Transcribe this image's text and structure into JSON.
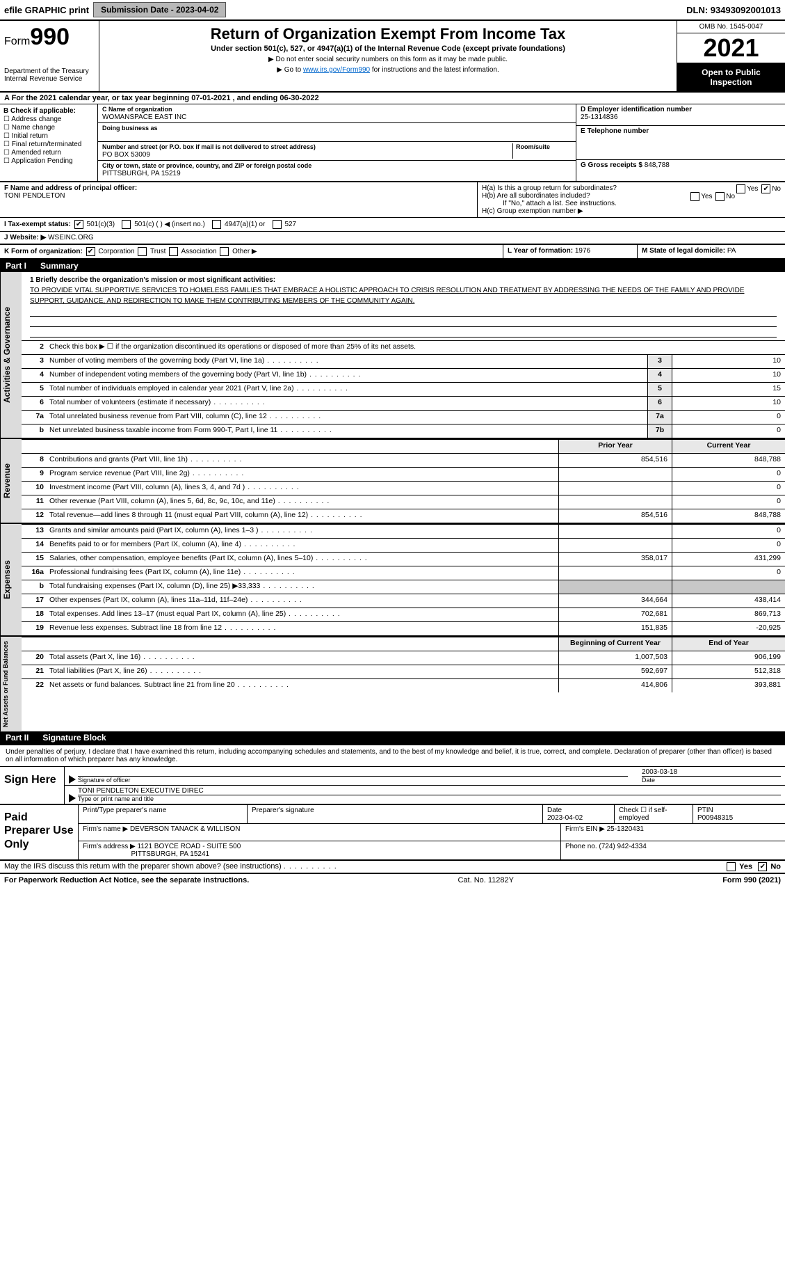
{
  "topbar": {
    "efile": "efile GRAPHIC print",
    "submission_label": "Submission Date - 2023-04-02",
    "dln": "DLN: 93493092001013"
  },
  "header": {
    "form_prefix": "Form",
    "form_no": "990",
    "dept1": "Department of the Treasury",
    "dept2": "Internal Revenue Service",
    "title": "Return of Organization Exempt From Income Tax",
    "subtitle": "Under section 501(c), 527, or 4947(a)(1) of the Internal Revenue Code (except private foundations)",
    "note1": "▶ Do not enter social security numbers on this form as it may be made public.",
    "note2_pre": "▶ Go to ",
    "note2_link": "www.irs.gov/Form990",
    "note2_post": " for instructions and the latest information.",
    "omb": "OMB No. 1545-0047",
    "year": "2021",
    "open": "Open to Public Inspection"
  },
  "rowA": "A For the 2021 calendar year, or tax year beginning 07-01-2021    , and ending 06-30-2022",
  "blockB": {
    "title": "B Check if applicable:",
    "items": [
      "Address change",
      "Name change",
      "Initial return",
      "Final return/terminated",
      "Amended return",
      "Application Pending"
    ]
  },
  "blockC": {
    "name_lbl": "C Name of organization",
    "name": "WOMANSPACE EAST INC",
    "dba_lbl": "Doing business as",
    "dba": "",
    "addr_lbl": "Number and street (or P.O. box if mail is not delivered to street address)",
    "room_lbl": "Room/suite",
    "addr": "PO BOX 53009",
    "city_lbl": "City or town, state or province, country, and ZIP or foreign postal code",
    "city": "PITTSBURGH, PA  15219"
  },
  "blockD": {
    "ein_lbl": "D Employer identification number",
    "ein": "25-1314836",
    "tel_lbl": "E Telephone number",
    "tel": "",
    "gross_lbl": "G Gross receipts $",
    "gross": "848,788"
  },
  "rowF": {
    "lbl": "F Name and address of principal officer:",
    "val": "TONI PENDLETON"
  },
  "rowH": {
    "a": "H(a)  Is this a group return for subordinates?",
    "b": "H(b)  Are all subordinates included?",
    "b_note": "If \"No,\" attach a list. See instructions.",
    "c": "H(c)  Group exemption number ▶",
    "yes": "Yes",
    "no": "No"
  },
  "rowI": {
    "lbl": "I    Tax-exempt status:",
    "o1": "501(c)(3)",
    "o2": "501(c) (  ) ◀ (insert no.)",
    "o3": "4947(a)(1) or",
    "o4": "527"
  },
  "rowJ": {
    "lbl": "J   Website: ▶",
    "val": "WSEINC.ORG"
  },
  "rowK": {
    "lbl": "K Form of organization:",
    "o1": "Corporation",
    "o2": "Trust",
    "o3": "Association",
    "o4": "Other ▶",
    "l_lbl": "L Year of formation:",
    "l_val": "1976",
    "m_lbl": "M State of legal domicile:",
    "m_val": "PA"
  },
  "part1": {
    "num": "Part I",
    "title": "Summary"
  },
  "mission": {
    "lbl": "1  Briefly describe the organization's mission or most significant activities:",
    "text": "TO PROVIDE VITAL SUPPORTIVE SERVICES TO HOMELESS FAMILIES THAT EMBRACE A HOLISTIC APPROACH TO CRISIS RESOLUTION AND TREATMENT BY ADDRESSING THE NEEDS OF THE FAMILY AND PROVIDE SUPPORT, GUIDANCE, AND REDIRECTION TO MAKE THEM CONTRIBUTING MEMBERS OF THE COMMUNITY AGAIN."
  },
  "sec_ag": {
    "vtab": "Activities & Governance",
    "l2": "Check this box ▶ ☐  if the organization discontinued its operations or disposed of more than 25% of its net assets.",
    "lines": [
      {
        "n": "3",
        "t": "Number of voting members of the governing body (Part VI, line 1a)",
        "bx": "3",
        "v": "10"
      },
      {
        "n": "4",
        "t": "Number of independent voting members of the governing body (Part VI, line 1b)",
        "bx": "4",
        "v": "10"
      },
      {
        "n": "5",
        "t": "Total number of individuals employed in calendar year 2021 (Part V, line 2a)",
        "bx": "5",
        "v": "15"
      },
      {
        "n": "6",
        "t": "Total number of volunteers (estimate if necessary)",
        "bx": "6",
        "v": "10"
      },
      {
        "n": "7a",
        "t": "Total unrelated business revenue from Part VIII, column (C), line 12",
        "bx": "7a",
        "v": "0"
      },
      {
        "n": "b",
        "t": "Net unrelated business taxable income from Form 990-T, Part I, line 11",
        "bx": "7b",
        "v": "0"
      }
    ]
  },
  "cols": {
    "prior": "Prior Year",
    "current": "Current Year"
  },
  "sec_rev": {
    "vtab": "Revenue",
    "lines": [
      {
        "n": "8",
        "t": "Contributions and grants (Part VIII, line 1h)",
        "p": "854,516",
        "c": "848,788"
      },
      {
        "n": "9",
        "t": "Program service revenue (Part VIII, line 2g)",
        "p": "",
        "c": "0"
      },
      {
        "n": "10",
        "t": "Investment income (Part VIII, column (A), lines 3, 4, and 7d )",
        "p": "",
        "c": "0"
      },
      {
        "n": "11",
        "t": "Other revenue (Part VIII, column (A), lines 5, 6d, 8c, 9c, 10c, and 11e)",
        "p": "",
        "c": "0"
      },
      {
        "n": "12",
        "t": "Total revenue—add lines 8 through 11 (must equal Part VIII, column (A), line 12)",
        "p": "854,516",
        "c": "848,788"
      }
    ]
  },
  "sec_exp": {
    "vtab": "Expenses",
    "lines": [
      {
        "n": "13",
        "t": "Grants and similar amounts paid (Part IX, column (A), lines 1–3 )",
        "p": "",
        "c": "0"
      },
      {
        "n": "14",
        "t": "Benefits paid to or for members (Part IX, column (A), line 4)",
        "p": "",
        "c": "0"
      },
      {
        "n": "15",
        "t": "Salaries, other compensation, employee benefits (Part IX, column (A), lines 5–10)",
        "p": "358,017",
        "c": "431,299"
      },
      {
        "n": "16a",
        "t": "Professional fundraising fees (Part IX, column (A), line 11e)",
        "p": "",
        "c": "0"
      },
      {
        "n": "b",
        "t": "Total fundraising expenses (Part IX, column (D), line 25) ▶33,333",
        "p": "shade",
        "c": "shade"
      },
      {
        "n": "17",
        "t": "Other expenses (Part IX, column (A), lines 11a–11d, 11f–24e)",
        "p": "344,664",
        "c": "438,414"
      },
      {
        "n": "18",
        "t": "Total expenses. Add lines 13–17 (must equal Part IX, column (A), line 25)",
        "p": "702,681",
        "c": "869,713"
      },
      {
        "n": "19",
        "t": "Revenue less expenses. Subtract line 18 from line 12",
        "p": "151,835",
        "c": "-20,925"
      }
    ]
  },
  "cols2": {
    "prior": "Beginning of Current Year",
    "current": "End of Year"
  },
  "sec_na": {
    "vtab": "Net Assets or Fund Balances",
    "lines": [
      {
        "n": "20",
        "t": "Total assets (Part X, line 16)",
        "p": "1,007,503",
        "c": "906,199"
      },
      {
        "n": "21",
        "t": "Total liabilities (Part X, line 26)",
        "p": "592,697",
        "c": "512,318"
      },
      {
        "n": "22",
        "t": "Net assets or fund balances. Subtract line 21 from line 20",
        "p": "414,806",
        "c": "393,881"
      }
    ]
  },
  "part2": {
    "num": "Part II",
    "title": "Signature Block"
  },
  "sig": {
    "decl": "Under penalties of perjury, I declare that I have examined this return, including accompanying schedules and statements, and to the best of my knowledge and belief, it is true, correct, and complete. Declaration of preparer (other than officer) is based on all information of which preparer has any knowledge.",
    "sign_here": "Sign Here",
    "sig_officer": "Signature of officer",
    "date_lbl": "Date",
    "date": "2003-03-18",
    "name": "TONI PENDLETON  EXECUTIVE DIREC",
    "name_lbl": "Type or print name and title"
  },
  "paid": {
    "lbl": "Paid Preparer Use Only",
    "h1": "Print/Type preparer's name",
    "h2": "Preparer's signature",
    "h3": "Date",
    "h4": "Check ☐ if self-employed",
    "h5": "PTIN",
    "date": "2023-04-02",
    "ptin": "P00948315",
    "firm_name_lbl": "Firm's name    ▶",
    "firm_name": "DEVERSON TANACK & WILLISON",
    "firm_ein_lbl": "Firm's EIN ▶",
    "firm_ein": "25-1320431",
    "firm_addr_lbl": "Firm's address ▶",
    "firm_addr1": "1121 BOYCE ROAD - SUITE 500",
    "firm_addr2": "PITTSBURGH, PA  15241",
    "phone_lbl": "Phone no.",
    "phone": "(724) 942-4334"
  },
  "discuss": "May the IRS discuss this return with the preparer shown above? (see instructions)",
  "foot": {
    "l": "For Paperwork Reduction Act Notice, see the separate instructions.",
    "m": "Cat. No. 11282Y",
    "r": "Form 990 (2021)"
  }
}
